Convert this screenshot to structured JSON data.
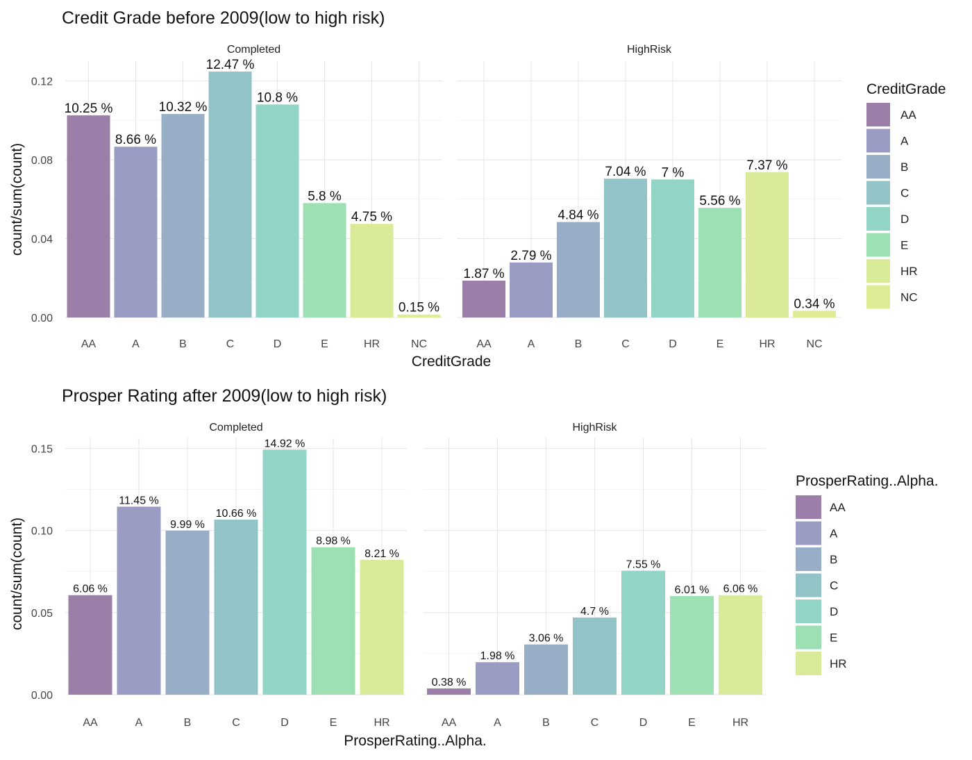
{
  "colors": {
    "AA": "#9c7fa8",
    "A": "#9a9cc4",
    "B": "#98aec7",
    "C": "#92c3c6",
    "D": "#92d4c5",
    "E": "#9de0b4",
    "HR": "#d9eb99",
    "NC": "#e0eb96"
  },
  "chart_data": [
    {
      "type": "bar",
      "title": "Credit Grade before 2009(low to high risk)",
      "xlabel": "CreditGrade",
      "ylabel": "count/sum(count)",
      "ylim": [
        0,
        0.13
      ],
      "yticks": [
        "0.00",
        "0.04",
        "0.08",
        "0.12"
      ],
      "categories": [
        "AA",
        "A",
        "B",
        "C",
        "D",
        "E",
        "HR",
        "NC"
      ],
      "legend": {
        "title": "CreditGrade",
        "position": "right"
      },
      "facets": [
        {
          "name": "Completed",
          "values": [
            0.1025,
            0.0866,
            0.1032,
            0.1247,
            0.108,
            0.058,
            0.0475,
            0.0015
          ],
          "labels": [
            "10.25 %",
            "8.66 %",
            "10.32 %",
            "12.47 %",
            "10.8 %",
            "5.8 %",
            "4.75 %",
            "0.15 %"
          ]
        },
        {
          "name": "HighRisk",
          "values": [
            0.0187,
            0.0279,
            0.0484,
            0.0704,
            0.07,
            0.0556,
            0.0737,
            0.0034
          ],
          "labels": [
            "1.87 %",
            "2.79 %",
            "4.84 %",
            "7.04 %",
            "7 %",
            "5.56 %",
            "7.37 %",
            "0.34 %"
          ]
        }
      ],
      "grid": true
    },
    {
      "type": "bar",
      "title": "Prosper Rating after 2009(low to high risk)",
      "xlabel": "ProsperRating..Alpha.",
      "ylabel": "count/sum(count)",
      "ylim": [
        0,
        0.1565
      ],
      "yticks": [
        "0.00",
        "0.05",
        "0.10",
        "0.15"
      ],
      "categories": [
        "AA",
        "A",
        "B",
        "C",
        "D",
        "E",
        "HR"
      ],
      "legend": {
        "title": "ProsperRating..Alpha.",
        "position": "right"
      },
      "facets": [
        {
          "name": "Completed",
          "values": [
            0.0606,
            0.1145,
            0.0999,
            0.1066,
            0.1492,
            0.0898,
            0.0821
          ],
          "labels": [
            "6.06 %",
            "11.45 %",
            "9.99 %",
            "10.66 %",
            "14.92 %",
            "8.98 %",
            "8.21 %"
          ]
        },
        {
          "name": "HighRisk",
          "values": [
            0.0038,
            0.0198,
            0.0306,
            0.047,
            0.0755,
            0.0601,
            0.0606
          ],
          "labels": [
            "0.38 %",
            "1.98 %",
            "3.06 %",
            "4.7 %",
            "7.55 %",
            "6.01 %",
            "6.06 %"
          ]
        }
      ],
      "grid": true
    }
  ]
}
